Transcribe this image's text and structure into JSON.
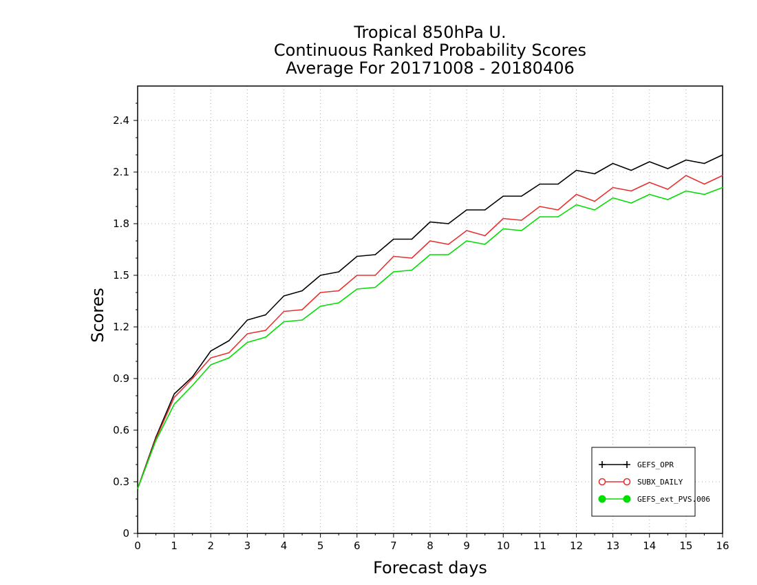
{
  "chart_data": {
    "type": "line",
    "title_lines": [
      "Tropical 850hPa U.",
      "Continuous Ranked Probability Scores",
      "Average For 20171008 - 20180406"
    ],
    "xlabel": "Forecast days",
    "ylabel": "Scores",
    "xlim": [
      0,
      16
    ],
    "ylim": [
      0,
      2.6
    ],
    "x_ticks": [
      "0",
      "1",
      "2",
      "3",
      "4",
      "5",
      "6",
      "7",
      "8",
      "9",
      "10",
      "11",
      "12",
      "13",
      "14",
      "15",
      "16"
    ],
    "y_ticks": [
      "0",
      "0.3",
      "0.6",
      "0.9",
      "1.2",
      "1.5",
      "1.8",
      "2.1",
      "2.4"
    ],
    "grid": true,
    "legend_position": "bottom-right",
    "x": [
      0,
      0.5,
      1,
      1.5,
      2,
      2.5,
      3,
      3.5,
      4,
      4.5,
      5,
      5.5,
      6,
      6.5,
      7,
      7.5,
      8,
      8.5,
      9,
      9.5,
      10,
      10.5,
      11,
      11.5,
      12,
      12.5,
      13,
      13.5,
      14,
      14.5,
      15,
      15.5,
      16
    ],
    "series": [
      {
        "name": "GEFS_OPR",
        "color": "#000000",
        "marker": "plus",
        "values": [
          0.26,
          0.56,
          0.81,
          0.91,
          1.06,
          1.12,
          1.24,
          1.27,
          1.38,
          1.41,
          1.5,
          1.52,
          1.61,
          1.62,
          1.71,
          1.71,
          1.81,
          1.8,
          1.88,
          1.88,
          1.96,
          1.96,
          2.03,
          2.03,
          2.11,
          2.09,
          2.15,
          2.11,
          2.16,
          2.12,
          2.17,
          2.15,
          2.2
        ]
      },
      {
        "name": "SUBX_DAILY",
        "color": "#e83030",
        "marker": "open-circle",
        "values": [
          0.26,
          0.55,
          0.79,
          0.9,
          1.02,
          1.05,
          1.16,
          1.18,
          1.29,
          1.3,
          1.4,
          1.41,
          1.5,
          1.5,
          1.61,
          1.6,
          1.7,
          1.68,
          1.76,
          1.73,
          1.83,
          1.82,
          1.9,
          1.88,
          1.97,
          1.93,
          2.01,
          1.99,
          2.04,
          2.0,
          2.08,
          2.03,
          2.08
        ]
      },
      {
        "name": "GEFS_ext_PVS.006",
        "color": "#00dd00",
        "marker": "filled-circle",
        "values": [
          0.26,
          0.54,
          0.75,
          0.86,
          0.98,
          1.02,
          1.11,
          1.14,
          1.23,
          1.24,
          1.32,
          1.34,
          1.42,
          1.43,
          1.52,
          1.53,
          1.62,
          1.62,
          1.7,
          1.68,
          1.77,
          1.76,
          1.84,
          1.84,
          1.91,
          1.88,
          1.95,
          1.92,
          1.97,
          1.94,
          1.99,
          1.97,
          2.01
        ]
      }
    ]
  }
}
